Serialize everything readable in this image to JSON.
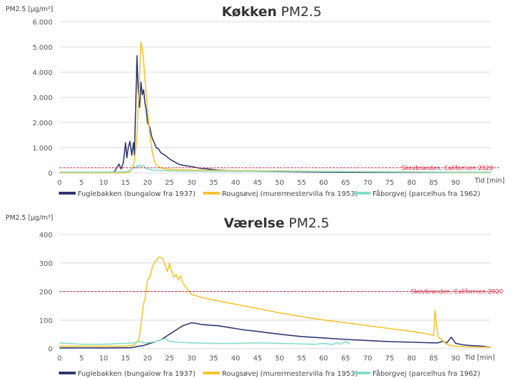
{
  "colors": {
    "fuglebakken": "#2c3670",
    "rougsoevej": "#f7c32e",
    "faaborgvej": "#86dccb",
    "reference": "#d2203a",
    "grid": "#d9d9d9"
  },
  "legend": [
    "Fuglebakken (bungalow fra 1937)",
    "Rougsøvej (murermestervilla fra 1953)",
    "Fåborgvej (parcelhus fra 1962)"
  ],
  "chart_data": [
    {
      "type": "line",
      "title_bold": "Køkken",
      "title_rest": " PM2.5",
      "ylabel": "PM2.5 [µg/m³]",
      "xlabel": "Tid [min]",
      "ylim": [
        0,
        6000
      ],
      "yticks": [
        "0",
        "1.000",
        "2.000",
        "3.000",
        "4.000",
        "5.000",
        "6.000"
      ],
      "xlim": [
        0,
        98
      ],
      "xticks": [
        "0",
        "5",
        "10",
        "15",
        "20",
        "25",
        "30",
        "35",
        "40",
        "45",
        "50",
        "55",
        "60",
        "65",
        "70",
        "75",
        "80",
        "85",
        "90"
      ],
      "grid": true,
      "reference": {
        "label": "Skovbranden, Californien 2020",
        "value": 200
      },
      "series": [
        {
          "name": "Fuglebakken (bungalow fra 1937)",
          "x": [
            0,
            12,
            12.5,
            13,
            13.5,
            14,
            14.5,
            15,
            15.3,
            15.6,
            16,
            16.4,
            16.8,
            17,
            17.3,
            17.6,
            17.9,
            18.2,
            18.5,
            18.8,
            19.1,
            19.4,
            19.7,
            20,
            20.5,
            21,
            21.5,
            22,
            22.5,
            23,
            24,
            25,
            26,
            27,
            28,
            30,
            32,
            34,
            36,
            40,
            45,
            50,
            55,
            60,
            65,
            70,
            75,
            80,
            85,
            90,
            95,
            98
          ],
          "y": [
            20,
            20,
            60,
            200,
            350,
            150,
            400,
            1200,
            600,
            1000,
            1250,
            700,
            1200,
            700,
            2500,
            4650,
            3200,
            2600,
            3600,
            3100,
            3300,
            2800,
            2500,
            2000,
            1800,
            1400,
            1200,
            1000,
            950,
            800,
            700,
            550,
            450,
            350,
            300,
            250,
            180,
            150,
            110,
            80,
            60,
            50,
            40,
            30,
            25,
            20,
            20,
            20,
            20,
            20,
            20,
            20
          ]
        },
        {
          "name": "Rougsøvej (murermestervilla fra 1953)",
          "x": [
            0,
            15,
            16,
            16.5,
            17,
            17.5,
            18,
            18.5,
            19,
            19.5,
            20,
            20.5,
            21,
            21.5,
            22,
            23,
            24,
            25,
            27,
            30,
            35,
            40,
            50,
            60,
            70,
            80,
            85,
            90,
            98
          ],
          "y": [
            0,
            0,
            50,
            150,
            500,
            1200,
            3000,
            5200,
            4700,
            3500,
            2500,
            1500,
            900,
            500,
            300,
            200,
            150,
            130,
            120,
            110,
            100,
            90,
            80,
            60,
            50,
            40,
            30,
            20,
            10
          ]
        },
        {
          "name": "Fåborgvej (parcelhus fra 1962)",
          "x": [
            0,
            10,
            15,
            16,
            16.5,
            17,
            17.3,
            17.6,
            18,
            18.3,
            18.6,
            19,
            19.3,
            19.6,
            20,
            21,
            22,
            25,
            30,
            40,
            50,
            60,
            65,
            70,
            80,
            90,
            98
          ],
          "y": [
            30,
            30,
            40,
            100,
            150,
            250,
            180,
            300,
            220,
            320,
            250,
            300,
            260,
            180,
            150,
            120,
            100,
            80,
            70,
            60,
            60,
            50,
            50,
            40,
            30,
            30,
            30
          ]
        }
      ]
    },
    {
      "type": "line",
      "title_bold": "Værelse",
      "title_rest": " PM2.5",
      "ylabel": "PM2.5 [µg/m³]",
      "xlabel": "Tid [min]",
      "ylim": [
        0,
        400
      ],
      "yticks": [
        "0",
        "100",
        "200",
        "300",
        "400"
      ],
      "xlim": [
        0,
        98
      ],
      "xticks": [
        "0",
        "5",
        "10",
        "15",
        "20",
        "25",
        "30",
        "35",
        "40",
        "45",
        "50",
        "55",
        "60",
        "65",
        "70",
        "75",
        "80",
        "85",
        "90"
      ],
      "grid": true,
      "reference": {
        "label": "Skovbranden, Californien 2020",
        "value": 200
      },
      "series": [
        {
          "name": "Fuglebakken (bungalow fra 1937)",
          "x": [
            0,
            10,
            16,
            17,
            18,
            19,
            20,
            21,
            22,
            23,
            24,
            25,
            26,
            27,
            28,
            29,
            30,
            31,
            32,
            34,
            36,
            38,
            40,
            42,
            45,
            50,
            55,
            60,
            65,
            70,
            75,
            80,
            85,
            86,
            87,
            88,
            89,
            90,
            92,
            94,
            96,
            98
          ],
          "y": [
            2,
            2,
            3,
            5,
            8,
            10,
            15,
            20,
            25,
            30,
            40,
            50,
            60,
            70,
            80,
            85,
            90,
            88,
            85,
            82,
            80,
            75,
            70,
            65,
            60,
            50,
            42,
            37,
            32,
            28,
            24,
            22,
            20,
            20,
            25,
            20,
            40,
            18,
            12,
            10,
            8,
            5
          ]
        },
        {
          "name": "Rougsøvej (murermestervilla fra 1953)",
          "x": [
            0,
            15,
            17,
            18,
            18.5,
            19,
            19.5,
            20,
            20.5,
            21,
            21.5,
            22,
            22.5,
            23,
            23.5,
            24,
            24.5,
            25,
            25.5,
            26,
            26.5,
            27,
            27.5,
            28,
            29,
            30,
            32,
            35,
            40,
            45,
            50,
            55,
            60,
            65,
            70,
            75,
            80,
            84,
            85,
            85.3,
            85.6,
            86,
            86.5,
            87,
            88,
            89,
            90,
            92,
            95,
            98
          ],
          "y": [
            8,
            8,
            12,
            30,
            80,
            150,
            180,
            240,
            250,
            280,
            300,
            310,
            320,
            320,
            315,
            290,
            270,
            300,
            270,
            250,
            260,
            240,
            255,
            230,
            210,
            190,
            180,
            170,
            155,
            140,
            125,
            112,
            100,
            90,
            80,
            70,
            60,
            50,
            45,
            135,
            90,
            40,
            35,
            28,
            15,
            10,
            8,
            6,
            5,
            5
          ]
        },
        {
          "name": "Fåborgvej (parcelhus fra 1962)",
          "x": [
            0,
            2,
            5,
            10,
            15,
            17,
            18,
            19,
            20,
            21,
            22,
            23,
            24,
            25,
            27,
            30,
            35,
            40,
            45,
            50,
            55,
            58,
            60,
            62,
            63,
            64,
            65,
            66
          ],
          "y": [
            20,
            18,
            15,
            15,
            18,
            20,
            25,
            20,
            20,
            22,
            25,
            30,
            35,
            25,
            22,
            20,
            18,
            18,
            20,
            18,
            16,
            15,
            18,
            14,
            20,
            15,
            25,
            15
          ]
        }
      ]
    }
  ]
}
